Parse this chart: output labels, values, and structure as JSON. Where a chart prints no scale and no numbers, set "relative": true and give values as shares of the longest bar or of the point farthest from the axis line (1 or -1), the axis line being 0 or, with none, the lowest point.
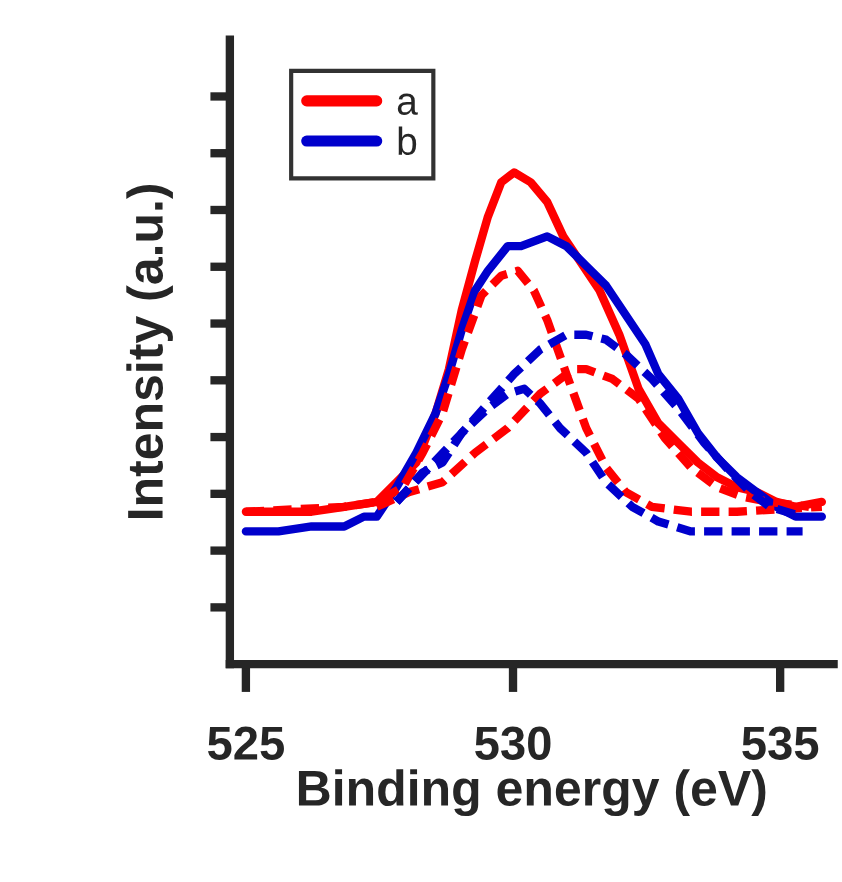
{
  "chart_data": {
    "type": "line",
    "relative": true,
    "xlabel": "Binding energy (eV)",
    "ylabel": "Intensity (a.u.)",
    "xlim": [
      524.7,
      536
    ],
    "xticks": [
      525,
      530,
      535
    ],
    "legend": "top left",
    "grid": false,
    "marker": "none",
    "series": [
      {
        "name": "a",
        "color": "#ff0000",
        "line_style": "solid",
        "x": [
          525.0,
          525.61,
          526.23,
          526.84,
          527.45,
          527.82,
          528.19,
          528.55,
          528.8,
          529.04,
          529.29,
          529.53,
          529.78,
          530.02,
          530.33,
          530.64,
          530.94,
          531.25,
          531.62,
          531.99,
          532.35,
          532.72,
          533.09,
          533.46,
          533.82,
          534.19,
          534.56,
          534.93,
          535.29,
          535.78
        ],
        "values": [
          0.31,
          0.31,
          0.31,
          0.32,
          0.33,
          0.37,
          0.41,
          0.51,
          0.6,
          0.72,
          0.82,
          0.91,
          0.98,
          1.0,
          0.98,
          0.94,
          0.87,
          0.82,
          0.76,
          0.67,
          0.56,
          0.49,
          0.45,
          0.41,
          0.38,
          0.36,
          0.35,
          0.33,
          0.32,
          0.33
        ]
      },
      {
        "name": "b",
        "color": "#0000cc",
        "line_style": "solid",
        "x": [
          525.0,
          525.61,
          526.23,
          526.84,
          527.21,
          527.45,
          527.82,
          528.19,
          528.55,
          528.8,
          529.04,
          529.29,
          529.53,
          529.9,
          530.15,
          530.64,
          531.0,
          531.37,
          531.74,
          532.11,
          532.48,
          532.72,
          533.09,
          533.46,
          533.82,
          534.19,
          534.56,
          534.93,
          535.29,
          535.78
        ],
        "values": [
          0.27,
          0.27,
          0.28,
          0.28,
          0.3,
          0.3,
          0.36,
          0.43,
          0.51,
          0.59,
          0.68,
          0.76,
          0.8,
          0.85,
          0.85,
          0.87,
          0.85,
          0.81,
          0.77,
          0.71,
          0.65,
          0.59,
          0.54,
          0.47,
          0.42,
          0.38,
          0.35,
          0.32,
          0.3,
          0.3
        ]
      },
      {
        "color": "#ff0000",
        "line_style": "dashed",
        "x": [
          525.0,
          526.84,
          527.45,
          527.94,
          528.31,
          528.68,
          529.04,
          529.41,
          529.78,
          530.09,
          530.39,
          530.64,
          531.0,
          531.37,
          531.74,
          532.11,
          532.6,
          533.33,
          534.19,
          535.78
        ],
        "values": [
          0.31,
          0.32,
          0.33,
          0.36,
          0.43,
          0.51,
          0.64,
          0.75,
          0.79,
          0.8,
          0.76,
          0.7,
          0.59,
          0.48,
          0.4,
          0.35,
          0.32,
          0.31,
          0.31,
          0.32
        ]
      },
      {
        "color": "#ff0000",
        "line_style": "dashed",
        "x": [
          527.45,
          528.06,
          528.68,
          529.29,
          529.9,
          530.51,
          531.13,
          531.37,
          531.86,
          532.35,
          532.84,
          533.33,
          533.82,
          534.31,
          534.8,
          535.54
        ],
        "values": [
          0.32,
          0.35,
          0.37,
          0.43,
          0.48,
          0.55,
          0.6,
          0.6,
          0.58,
          0.54,
          0.46,
          0.4,
          0.36,
          0.34,
          0.33,
          0.32
        ]
      },
      {
        "color": "#0000cc",
        "line_style": "dashed",
        "x": [
          527.82,
          528.31,
          528.68,
          529.04,
          529.53,
          529.9,
          530.21,
          530.51,
          530.88,
          531.37,
          531.74,
          532.23,
          532.72,
          533.33,
          534.19,
          535.42
        ],
        "values": [
          0.33,
          0.39,
          0.41,
          0.47,
          0.52,
          0.55,
          0.56,
          0.53,
          0.48,
          0.43,
          0.37,
          0.32,
          0.29,
          0.27,
          0.27,
          0.27
        ]
      },
      {
        "color": "#0000cc",
        "line_style": "dashed",
        "x": [
          527.82,
          528.43,
          529.04,
          529.53,
          530.02,
          530.51,
          531.0,
          531.37,
          531.74,
          532.11,
          532.6,
          533.09,
          533.58,
          534.07,
          534.44,
          534.8,
          535.42
        ],
        "values": [
          0.33,
          0.4,
          0.47,
          0.53,
          0.59,
          0.64,
          0.67,
          0.67,
          0.66,
          0.63,
          0.58,
          0.52,
          0.45,
          0.39,
          0.35,
          0.32,
          0.3
        ]
      }
    ]
  }
}
